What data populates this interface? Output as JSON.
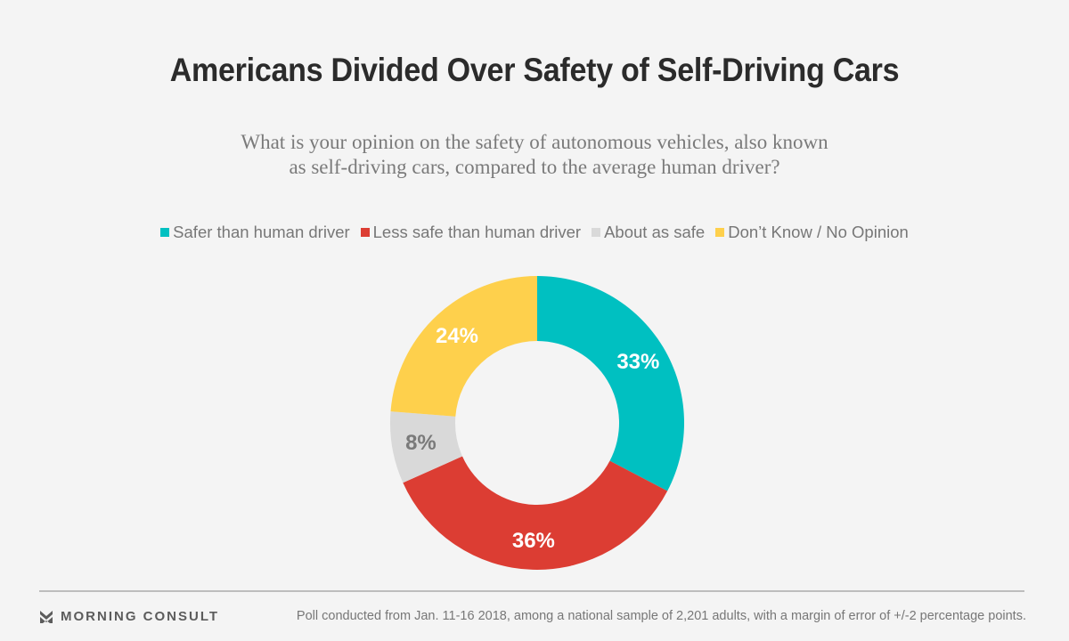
{
  "header": {
    "title": "Americans Divided Over Safety of Self-Driving Cars",
    "subtitle_line1": "What is your opinion on the safety of autonomous vehicles, also known",
    "subtitle_line2": "as self-driving cars, compared to the average human driver?"
  },
  "chart_data": {
    "type": "pie",
    "variant": "donut",
    "title": "Americans Divided Over Safety of Self-Driving Cars",
    "subtitle": "What is your opinion on the safety of autonomous vehicles, also known as self-driving cars, compared to the average human driver?",
    "legend_position": "top",
    "start_angle": "12 o'clock, clockwise",
    "categories": [
      "Safer than human driver",
      "Less safe than human driver",
      "About as safe",
      "Don’t Know / No Opinion"
    ],
    "values": [
      33,
      36,
      8,
      24
    ],
    "labels": [
      "33%",
      "36%",
      "8%",
      "24%"
    ],
    "colors": [
      "#00c0c1",
      "#dc3d33",
      "#d9d9d9",
      "#fed04c"
    ],
    "label_colors": [
      "#ffffff",
      "#ffffff",
      "#7a7a7a",
      "#ffffff"
    ],
    "unit": "%"
  },
  "legend": {
    "items": [
      {
        "label": "Safer than human driver",
        "color": "#00c0c1"
      },
      {
        "label": "Less safe than human driver",
        "color": "#dc3d33"
      },
      {
        "label": "About as safe",
        "color": "#d9d9d9"
      },
      {
        "label": "Don’t Know / No Opinion",
        "color": "#fed04c"
      }
    ]
  },
  "footer": {
    "brand": "MORNING CONSULT",
    "brand_icon": "morning-consult-logo-icon",
    "note": "Poll conducted from Jan. 11-16 2018, among a national sample of 2,201 adults, with a margin of error of +/-2 percentage points."
  }
}
